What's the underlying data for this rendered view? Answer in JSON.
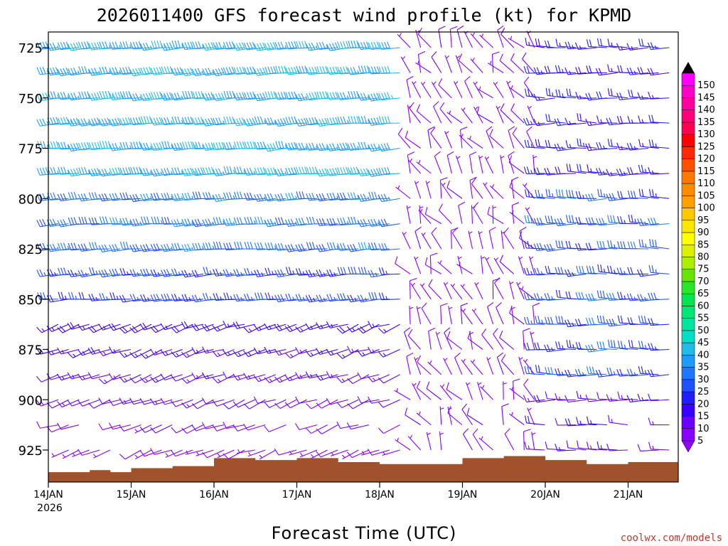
{
  "chart_data": {
    "type": "wind_barb_profile",
    "title": "2026011400 GFS forecast wind profile (kt) for KPMD",
    "xlabel": "Forecast Time (UTC)",
    "credit": "coolwx.com/models",
    "x_ticks": [
      "14JAN",
      "15JAN",
      "16JAN",
      "17JAN",
      "18JAN",
      "19JAN",
      "20JAN",
      "21JAN"
    ],
    "x_year_label": "2026",
    "x_range_days": [
      0,
      7.5
    ],
    "y_label_unit": "hPa",
    "y_ticks": [
      725,
      750,
      775,
      800,
      825,
      850,
      875,
      900,
      925
    ],
    "y_range": [
      940,
      714
    ],
    "levels": [
      725,
      737.5,
      750,
      762.5,
      775,
      787.5,
      800,
      812.5,
      825,
      837.5,
      850,
      862.5,
      875,
      887.5,
      900,
      912.5,
      925
    ],
    "time_step_hours": 3,
    "surface_pressure_profile": [
      {
        "day": 0.0,
        "hPa": 936
      },
      {
        "day": 0.5,
        "hPa": 935
      },
      {
        "day": 0.75,
        "hPa": 936
      },
      {
        "day": 1.0,
        "hPa": 934
      },
      {
        "day": 1.5,
        "hPa": 933
      },
      {
        "day": 2.0,
        "hPa": 929
      },
      {
        "day": 2.5,
        "hPa": 930
      },
      {
        "day": 3.0,
        "hPa": 929
      },
      {
        "day": 3.5,
        "hPa": 931
      },
      {
        "day": 4.0,
        "hPa": 932
      },
      {
        "day": 4.5,
        "hPa": 932
      },
      {
        "day": 5.0,
        "hPa": 929
      },
      {
        "day": 5.5,
        "hPa": 928
      },
      {
        "day": 6.0,
        "hPa": 930
      },
      {
        "day": 6.5,
        "hPa": 932
      },
      {
        "day": 7.0,
        "hPa": 931
      },
      {
        "day": 7.5,
        "hPa": 931
      }
    ],
    "wind_regimes": [
      {
        "period": "14JAN-18JAN",
        "levels": "725-850 hPa",
        "direction_deg": 265,
        "speed_kt": [
          25,
          40
        ]
      },
      {
        "period": "14JAN-18JAN",
        "levels": "850-925 hPa",
        "direction_deg": 250,
        "speed_kt": [
          5,
          15
        ]
      },
      {
        "period": "18JAN-20JAN",
        "levels": "all",
        "direction_deg": "variable northerly",
        "speed_kt": [
          5,
          10
        ]
      },
      {
        "period": "20JAN-21JAN",
        "levels": "725-925 hPa",
        "direction_deg": 270,
        "speed_kt": [
          15,
          30
        ]
      }
    ],
    "colorbar": {
      "unit": "kt",
      "labels": [
        5,
        10,
        15,
        20,
        25,
        30,
        35,
        40,
        45,
        50,
        55,
        60,
        65,
        70,
        75,
        80,
        85,
        90,
        95,
        100,
        105,
        110,
        115,
        120,
        125,
        130,
        135,
        140,
        145,
        150
      ],
      "colors": [
        "#8b00ff",
        "#6a00ff",
        "#3a00ff",
        "#1e1eff",
        "#1e50ff",
        "#1e78ff",
        "#1e9bff",
        "#1ebee6",
        "#00e0c8",
        "#00e6a0",
        "#00e678",
        "#00e650",
        "#28e628",
        "#64e600",
        "#aaf000",
        "#dcf000",
        "#ffff00",
        "#ffe600",
        "#ffc800",
        "#ffa000",
        "#ff8c00",
        "#ff7800",
        "#ff5000",
        "#ff2800",
        "#ff0000",
        "#ff0050",
        "#ff0078",
        "#ff00a0",
        "#ff00c8",
        "#ff00ff"
      ]
    },
    "colors": {
      "terrain": "#a0522d",
      "axis": "#000000"
    }
  }
}
